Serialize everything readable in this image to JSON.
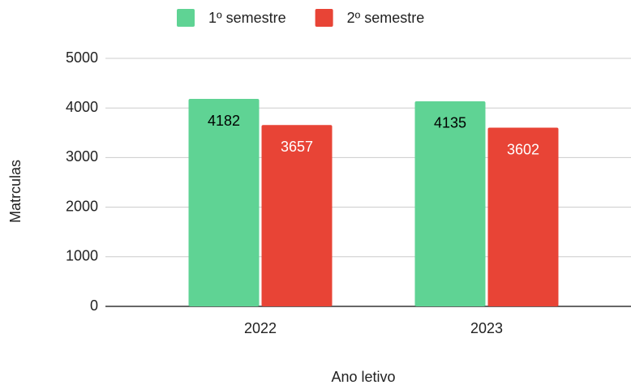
{
  "chart_data": {
    "type": "bar",
    "categories": [
      "2022",
      "2023"
    ],
    "series": [
      {
        "name": "1º semestre",
        "color": "#5fd394",
        "label_color": "#000000",
        "values": [
          4182,
          4135
        ]
      },
      {
        "name": "2º semestre",
        "color": "#e84436",
        "label_color": "#ffffff",
        "values": [
          3657,
          3602
        ]
      }
    ],
    "x_label": "Ano letivo",
    "y_label": "Matrculas",
    "ylim": [
      0,
      5000
    ],
    "yticks": [
      0,
      1000,
      2000,
      3000,
      4000,
      5000
    ],
    "grid": true,
    "legend": "top"
  }
}
